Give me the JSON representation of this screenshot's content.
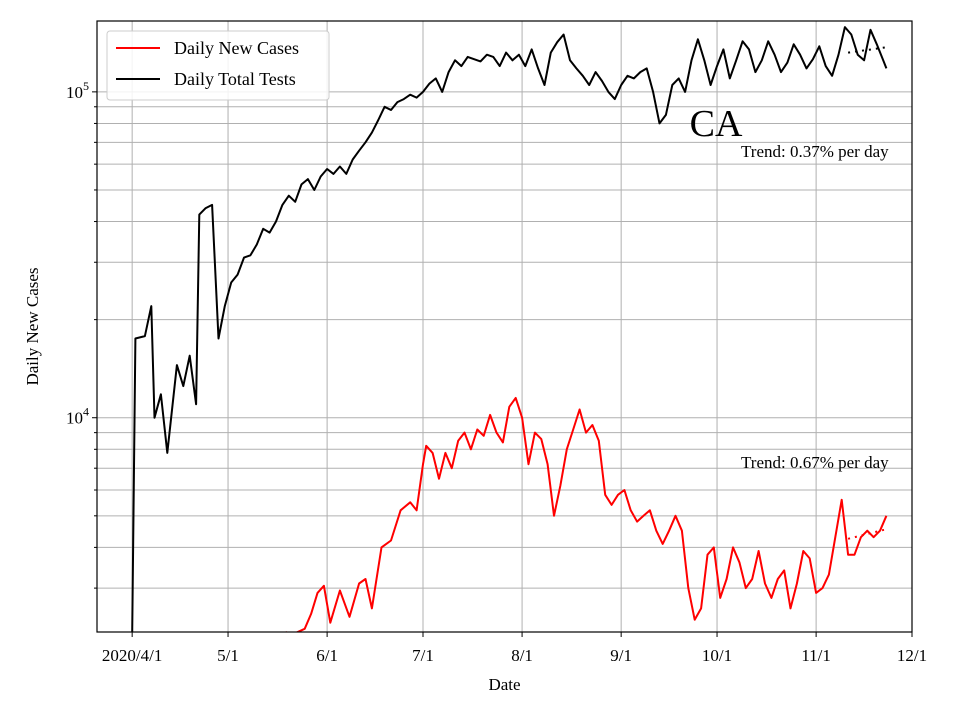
{
  "chart_data": {
    "type": "line",
    "xlabel": "Date",
    "ylabel": "Daily New Cases",
    "yscale": "log",
    "x_tick_labels": [
      "2020/4/1",
      "5/1",
      "6/1",
      "7/1",
      "8/1",
      "9/1",
      "10/1",
      "11/1",
      "12/1"
    ],
    "x_tick_dates": [
      "2020-03-31",
      "2020-04-30",
      "2020-05-31",
      "2020-06-30",
      "2020-07-31",
      "2020-08-31",
      "2020-09-30",
      "2020-10-31",
      "2020-11-30"
    ],
    "y_tick_labels": [
      {
        "base": "10",
        "exp": "4"
      },
      {
        "base": "10",
        "exp": "5"
      }
    ],
    "xlim": [
      "2020-03-20",
      "2020-11-30"
    ],
    "ylim": [
      2200,
      165000
    ],
    "grid": true,
    "legend_position": "top-left",
    "colors": {
      "cases": "#ff0000",
      "tests": "#000000"
    },
    "annotations": {
      "state": "CA",
      "tests_trend": "Trend: 0.37% per day",
      "cases_trend": "Trend: 0.67% per day"
    },
    "series": [
      {
        "name": "Daily New Cases",
        "color": "#ff0000",
        "points": [
          [
            "2020-05-18",
            2200
          ],
          [
            "2020-05-20",
            2160
          ],
          [
            "2020-05-24",
            2250
          ],
          [
            "2020-05-26",
            2500
          ],
          [
            "2020-05-28",
            2900
          ],
          [
            "2020-05-30",
            3050
          ],
          [
            "2020-06-01",
            2350
          ],
          [
            "2020-06-04",
            2950
          ],
          [
            "2020-06-07",
            2450
          ],
          [
            "2020-06-10",
            3100
          ],
          [
            "2020-06-12",
            3200
          ],
          [
            "2020-06-14",
            2600
          ],
          [
            "2020-06-17",
            4000
          ],
          [
            "2020-06-20",
            4200
          ],
          [
            "2020-06-23",
            5200
          ],
          [
            "2020-06-26",
            5500
          ],
          [
            "2020-06-28",
            5200
          ],
          [
            "2020-06-30",
            7200
          ],
          [
            "2020-07-01",
            8200
          ],
          [
            "2020-07-03",
            7800
          ],
          [
            "2020-07-05",
            6500
          ],
          [
            "2020-07-07",
            7800
          ],
          [
            "2020-07-09",
            7000
          ],
          [
            "2020-07-11",
            8500
          ],
          [
            "2020-07-13",
            9000
          ],
          [
            "2020-07-15",
            8000
          ],
          [
            "2020-07-17",
            9200
          ],
          [
            "2020-07-19",
            8800
          ],
          [
            "2020-07-21",
            10200
          ],
          [
            "2020-07-23",
            9000
          ],
          [
            "2020-07-25",
            8400
          ],
          [
            "2020-07-27",
            10800
          ],
          [
            "2020-07-29",
            11500
          ],
          [
            "2020-07-31",
            10000
          ],
          [
            "2020-08-02",
            7200
          ],
          [
            "2020-08-04",
            9000
          ],
          [
            "2020-08-06",
            8600
          ],
          [
            "2020-08-08",
            7200
          ],
          [
            "2020-08-10",
            5000
          ],
          [
            "2020-08-12",
            6200
          ],
          [
            "2020-08-14",
            8000
          ],
          [
            "2020-08-16",
            9200
          ],
          [
            "2020-08-18",
            10600
          ],
          [
            "2020-08-20",
            9000
          ],
          [
            "2020-08-22",
            9500
          ],
          [
            "2020-08-24",
            8500
          ],
          [
            "2020-08-26",
            5800
          ],
          [
            "2020-08-28",
            5400
          ],
          [
            "2020-08-30",
            5800
          ],
          [
            "2020-09-01",
            6000
          ],
          [
            "2020-09-03",
            5200
          ],
          [
            "2020-09-05",
            4800
          ],
          [
            "2020-09-07",
            5000
          ],
          [
            "2020-09-09",
            5200
          ],
          [
            "2020-09-11",
            4500
          ],
          [
            "2020-09-13",
            4100
          ],
          [
            "2020-09-15",
            4500
          ],
          [
            "2020-09-17",
            5000
          ],
          [
            "2020-09-19",
            4500
          ],
          [
            "2020-09-21",
            3000
          ],
          [
            "2020-09-23",
            2400
          ],
          [
            "2020-09-25",
            2600
          ],
          [
            "2020-09-27",
            3800
          ],
          [
            "2020-09-29",
            4000
          ],
          [
            "2020-10-01",
            2800
          ],
          [
            "2020-10-03",
            3200
          ],
          [
            "2020-10-05",
            4000
          ],
          [
            "2020-10-07",
            3600
          ],
          [
            "2020-10-09",
            3000
          ],
          [
            "2020-10-11",
            3200
          ],
          [
            "2020-10-13",
            3900
          ],
          [
            "2020-10-15",
            3100
          ],
          [
            "2020-10-17",
            2800
          ],
          [
            "2020-10-19",
            3200
          ],
          [
            "2020-10-21",
            3400
          ],
          [
            "2020-10-23",
            2600
          ],
          [
            "2020-10-25",
            3100
          ],
          [
            "2020-10-27",
            3900
          ],
          [
            "2020-10-29",
            3700
          ],
          [
            "2020-10-31",
            2900
          ],
          [
            "2020-11-02",
            3000
          ],
          [
            "2020-11-04",
            3300
          ],
          [
            "2020-11-06",
            4300
          ],
          [
            "2020-11-08",
            5600
          ],
          [
            "2020-11-10",
            3800
          ],
          [
            "2020-11-12",
            3800
          ],
          [
            "2020-11-14",
            4300
          ],
          [
            "2020-11-16",
            4500
          ],
          [
            "2020-11-18",
            4300
          ],
          [
            "2020-11-20",
            4500
          ],
          [
            "2020-11-22",
            5000
          ]
        ]
      },
      {
        "name": "Daily Total Tests",
        "color": "#000000",
        "points": [
          [
            "2020-03-31",
            2200
          ],
          [
            "2020-04-01",
            17500
          ],
          [
            "2020-04-04",
            17800
          ],
          [
            "2020-04-06",
            22000
          ],
          [
            "2020-04-07",
            10000
          ],
          [
            "2020-04-09",
            11800
          ],
          [
            "2020-04-11",
            7800
          ],
          [
            "2020-04-14",
            14500
          ],
          [
            "2020-04-16",
            12500
          ],
          [
            "2020-04-18",
            15500
          ],
          [
            "2020-04-20",
            11000
          ],
          [
            "2020-04-21",
            42000
          ],
          [
            "2020-04-23",
            44000
          ],
          [
            "2020-04-25",
            45000
          ],
          [
            "2020-04-27",
            17500
          ],
          [
            "2020-04-29",
            22000
          ],
          [
            "2020-05-01",
            26000
          ],
          [
            "2020-05-03",
            27500
          ],
          [
            "2020-05-05",
            31000
          ],
          [
            "2020-05-07",
            31500
          ],
          [
            "2020-05-09",
            34000
          ],
          [
            "2020-05-11",
            38000
          ],
          [
            "2020-05-13",
            37000
          ],
          [
            "2020-05-15",
            40000
          ],
          [
            "2020-05-17",
            45000
          ],
          [
            "2020-05-19",
            48000
          ],
          [
            "2020-05-21",
            46000
          ],
          [
            "2020-05-23",
            52000
          ],
          [
            "2020-05-25",
            54000
          ],
          [
            "2020-05-27",
            50000
          ],
          [
            "2020-05-29",
            55000
          ],
          [
            "2020-05-31",
            58000
          ],
          [
            "2020-06-02",
            56000
          ],
          [
            "2020-06-04",
            59000
          ],
          [
            "2020-06-06",
            56000
          ],
          [
            "2020-06-08",
            62000
          ],
          [
            "2020-06-10",
            66000
          ],
          [
            "2020-06-12",
            70000
          ],
          [
            "2020-06-14",
            75000
          ],
          [
            "2020-06-16",
            82000
          ],
          [
            "2020-06-18",
            90000
          ],
          [
            "2020-06-20",
            88000
          ],
          [
            "2020-06-22",
            93000
          ],
          [
            "2020-06-24",
            95000
          ],
          [
            "2020-06-26",
            98000
          ],
          [
            "2020-06-28",
            96000
          ],
          [
            "2020-06-30",
            100000
          ],
          [
            "2020-07-02",
            106000
          ],
          [
            "2020-07-04",
            110000
          ],
          [
            "2020-07-06",
            100000
          ],
          [
            "2020-07-08",
            115000
          ],
          [
            "2020-07-10",
            125000
          ],
          [
            "2020-07-12",
            120000
          ],
          [
            "2020-07-14",
            128000
          ],
          [
            "2020-07-16",
            126000
          ],
          [
            "2020-07-18",
            124000
          ],
          [
            "2020-07-20",
            130000
          ],
          [
            "2020-07-22",
            128000
          ],
          [
            "2020-07-24",
            120000
          ],
          [
            "2020-07-26",
            132000
          ],
          [
            "2020-07-28",
            125000
          ],
          [
            "2020-07-30",
            130000
          ],
          [
            "2020-08-01",
            120000
          ],
          [
            "2020-08-03",
            135000
          ],
          [
            "2020-08-05",
            118000
          ],
          [
            "2020-08-07",
            105000
          ],
          [
            "2020-08-09",
            132000
          ],
          [
            "2020-08-11",
            142000
          ],
          [
            "2020-08-13",
            150000
          ],
          [
            "2020-08-15",
            125000
          ],
          [
            "2020-08-17",
            118000
          ],
          [
            "2020-08-19",
            112000
          ],
          [
            "2020-08-21",
            105000
          ],
          [
            "2020-08-23",
            115000
          ],
          [
            "2020-08-25",
            108000
          ],
          [
            "2020-08-27",
            100000
          ],
          [
            "2020-08-29",
            95000
          ],
          [
            "2020-08-31",
            105000
          ],
          [
            "2020-09-02",
            112000
          ],
          [
            "2020-09-04",
            110000
          ],
          [
            "2020-09-06",
            115000
          ],
          [
            "2020-09-08",
            118000
          ],
          [
            "2020-09-10",
            100000
          ],
          [
            "2020-09-12",
            80000
          ],
          [
            "2020-09-14",
            85000
          ],
          [
            "2020-09-16",
            105000
          ],
          [
            "2020-09-18",
            110000
          ],
          [
            "2020-09-20",
            100000
          ],
          [
            "2020-09-22",
            125000
          ],
          [
            "2020-09-24",
            145000
          ],
          [
            "2020-09-26",
            125000
          ],
          [
            "2020-09-28",
            105000
          ],
          [
            "2020-09-30",
            120000
          ],
          [
            "2020-10-02",
            135000
          ],
          [
            "2020-10-04",
            110000
          ],
          [
            "2020-10-06",
            125000
          ],
          [
            "2020-10-08",
            143000
          ],
          [
            "2020-10-10",
            135000
          ],
          [
            "2020-10-12",
            115000
          ],
          [
            "2020-10-14",
            125000
          ],
          [
            "2020-10-16",
            143000
          ],
          [
            "2020-10-18",
            130000
          ],
          [
            "2020-10-20",
            115000
          ],
          [
            "2020-10-22",
            123000
          ],
          [
            "2020-10-24",
            140000
          ],
          [
            "2020-10-26",
            130000
          ],
          [
            "2020-10-28",
            118000
          ],
          [
            "2020-10-30",
            126000
          ],
          [
            "2020-11-01",
            138000
          ],
          [
            "2020-11-03",
            120000
          ],
          [
            "2020-11-05",
            112000
          ],
          [
            "2020-11-07",
            130000
          ],
          [
            "2020-11-09",
            158000
          ],
          [
            "2020-11-11",
            150000
          ],
          [
            "2020-11-13",
            130000
          ],
          [
            "2020-11-15",
            125000
          ],
          [
            "2020-11-17",
            155000
          ],
          [
            "2020-11-19",
            140000
          ],
          [
            "2020-11-21",
            125000
          ],
          [
            "2020-11-22",
            118000
          ]
        ]
      }
    ],
    "trend_lines": [
      {
        "name": "tests-trend",
        "color": "#000000",
        "points": [
          [
            "2020-11-10",
            132000
          ],
          [
            "2020-11-22",
            137000
          ]
        ]
      },
      {
        "name": "cases-trend",
        "color": "#ff0000",
        "points": [
          [
            "2020-11-10",
            4250
          ],
          [
            "2020-11-22",
            4550
          ]
        ]
      }
    ]
  }
}
